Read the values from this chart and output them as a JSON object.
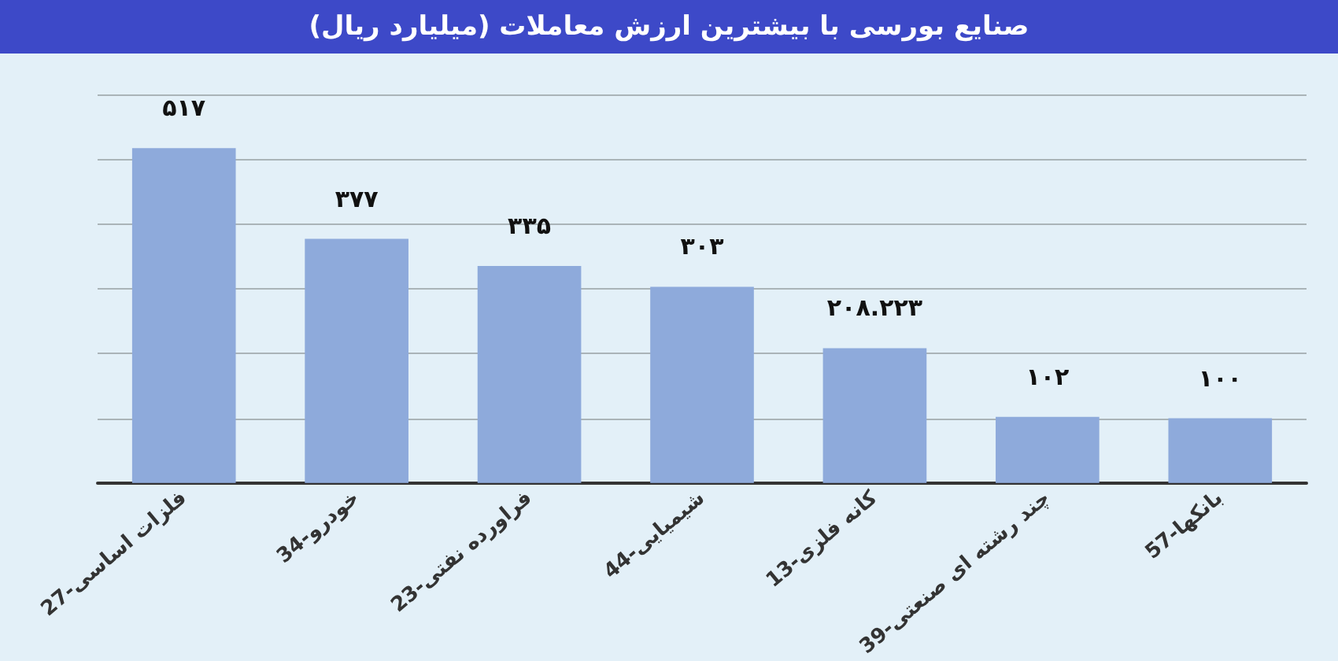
{
  "chart_data": {
    "type": "bar",
    "title": "صنایع بورسی با بیشترین ارزش معاملات (میلیارد ریال)",
    "categories": [
      "27-فلزات اساسی",
      "34-خودرو",
      "23-فراورده نفتی",
      "44-شیمیایی",
      "13-کانه فلزی",
      "39-چند رشته ای صنعتی",
      "57-بانکها"
    ],
    "values": [
      517,
      377,
      335,
      303,
      208.223,
      102,
      100
    ],
    "value_labels": [
      "۵۱۷",
      "۳۷۷",
      "۳۳۵",
      "۳۰۳",
      "۲۰۸.۲۲۳",
      "۱۰۲",
      "۱۰۰"
    ],
    "color": "#8eaadb",
    "ylim": [
      0,
      600
    ],
    "yticks": [
      {
        "value": 0,
        "label": null
      },
      {
        "value": 100,
        "label": null
      },
      {
        "value": 200,
        "label": null
      },
      {
        "value": 300,
        "label": null
      },
      {
        "value": 400,
        "label": null
      },
      {
        "value": 500,
        "label": null
      },
      {
        "value": 600,
        "label": null
      }
    ],
    "grid": "y",
    "tick_labels": "x"
  }
}
